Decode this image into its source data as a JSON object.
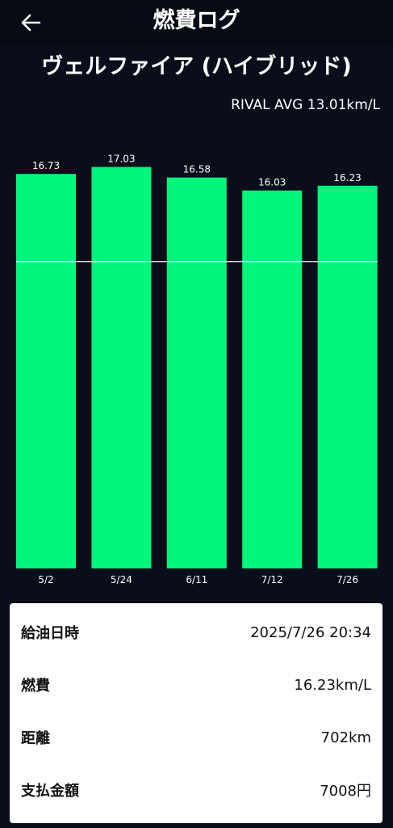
{
  "header": {
    "title": "燃費ログ"
  },
  "vehicle": {
    "name": "ヴェルファイア (ハイブリッド)"
  },
  "rival": {
    "label": "RIVAL AVG 13.01km/L"
  },
  "chart_data": {
    "type": "bar",
    "categories": [
      "5/2",
      "5/24",
      "6/11",
      "7/12",
      "7/26"
    ],
    "values": [
      16.73,
      17.03,
      16.58,
      16.03,
      16.23
    ],
    "value_labels": [
      "16.73",
      "17.03",
      "16.58",
      "16.03",
      "16.23"
    ],
    "reference_line": 13.01,
    "ylim": [
      0,
      17.8
    ],
    "bar_color": "#00f57f",
    "line_color": "#ffffff",
    "grid": false
  },
  "details": {
    "rows": [
      {
        "label": "給油日時",
        "value": "2025/7/26 20:34"
      },
      {
        "label": "燃費",
        "value": "16.23km/L"
      },
      {
        "label": "距離",
        "value": "702km"
      },
      {
        "label": "支払金額",
        "value": "7008円"
      }
    ]
  },
  "icons": {
    "back": "arrow-left-icon"
  }
}
